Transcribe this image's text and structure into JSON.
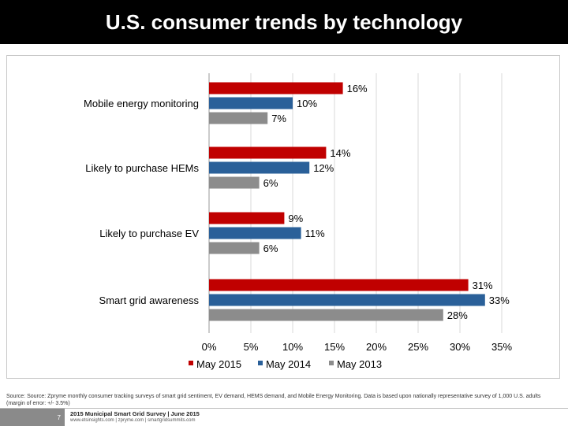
{
  "header": {
    "title": "U.S. consumer trends by technology"
  },
  "chart_data": {
    "type": "bar",
    "orientation": "horizontal",
    "categories": [
      "Mobile energy monitoring",
      "Likely to purchase HEMs",
      "Likely to purchase EV",
      "Smart grid awareness"
    ],
    "series": [
      {
        "name": "May 2015",
        "color": "#c00000",
        "values": [
          16,
          14,
          9,
          31
        ],
        "labels": [
          "16%",
          "14%",
          "9%",
          "31%"
        ]
      },
      {
        "name": "May 2014",
        "color": "#2a6099",
        "values": [
          10,
          12,
          11,
          33
        ],
        "labels": [
          "10%",
          "12%",
          "11%",
          "33%"
        ]
      },
      {
        "name": "May 2013",
        "color": "#8c8c8c",
        "values": [
          7,
          6,
          6,
          28
        ],
        "labels": [
          "7%",
          "6%",
          "6%",
          "28%"
        ]
      }
    ],
    "x_ticks": [
      0,
      5,
      10,
      15,
      20,
      25,
      30,
      35
    ],
    "x_tick_labels": [
      "0%",
      "5%",
      "10%",
      "15%",
      "20%",
      "25%",
      "30%",
      "35%"
    ],
    "xlim": [
      0,
      35
    ],
    "grid": true,
    "legend": "bottom"
  },
  "source": {
    "text": "Source: Source: Zpryme monthly consumer tracking surveys of smart grid sentiment, EV demand, HEMS demand, and Mobile Energy Monitoring. Data is based upon nationally representative survey of 1,000 U.S. adults (margin of error: +/- 3.5%)"
  },
  "footer": {
    "page_number": "7",
    "title": "2015 Municipal Smart Grid Survey | June 2015",
    "links": "www.etsinsights.com | zpryme.com | smartgridsummits.com"
  }
}
